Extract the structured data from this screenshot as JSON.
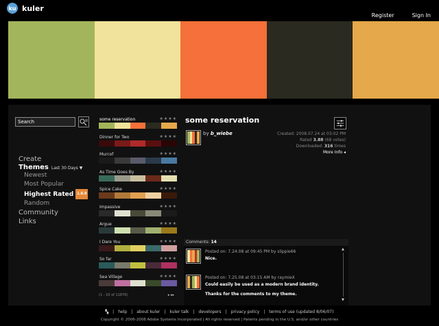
{
  "header": {
    "logo_badge": "ku",
    "logo_text": "kuler",
    "register": "Register",
    "signin": "Sign In"
  },
  "hero_colors": [
    "#a3b55c",
    "#f1e39b",
    "#f5703a",
    "#2a2a20",
    "#e5a84a"
  ],
  "search": {
    "value": "Search"
  },
  "nav": {
    "create": "Create",
    "themes": "Themes",
    "themes_range": "Last 30 Days",
    "newest": "Newest",
    "most_popular": "Most Popular",
    "highest_rated": "Highest Rated",
    "badge": "1.0.9",
    "random": "Random",
    "community": "Community",
    "links": "Links"
  },
  "themes": [
    {
      "name": "some reservation",
      "colors": [
        "#a3b55c",
        "#f1e39b",
        "#f5703a",
        "#2a2a20",
        "#e5a84a"
      ]
    },
    {
      "name": "Dinner for Two",
      "colors": [
        "#3a0a0a",
        "#7a1a1a",
        "#b02a2a",
        "#5a0f0f",
        "#2a0505"
      ]
    },
    {
      "name": "Murcof",
      "colors": [
        "#1a1a1a",
        "#3a3a3a",
        "#5a5a6a",
        "#2a3a4a",
        "#4a7aa0"
      ]
    },
    {
      "name": "As Time Goes By",
      "colors": [
        "#3a6a5a",
        "#9a9a8a",
        "#c8c0a0",
        "#6a2a1a",
        "#e6e0b0"
      ]
    },
    {
      "name": "Spice Cake",
      "colors": [
        "#6a3a1a",
        "#b07a3a",
        "#e0a050",
        "#f0d0a0",
        "#3a1a0a"
      ]
    },
    {
      "name": "Impassive",
      "colors": [
        "#2a2a2a",
        "#e0e0d0",
        "#4a4a3a",
        "#8a8a7a",
        "#1a1a1a"
      ]
    },
    {
      "name": "Argue",
      "colors": [
        "#2a3a3a",
        "#d0e0b0",
        "#5a5a4a",
        "#a0b070",
        "#9a7a1a"
      ]
    },
    {
      "name": "I Dare You",
      "colors": [
        "#3a1a1a",
        "#b0b040",
        "#e0d060",
        "#3a6a6a",
        "#d0a0a0"
      ]
    },
    {
      "name": "So far",
      "colors": [
        "#2a5a5a",
        "#7a7a6a",
        "#c0c040",
        "#4a2a3a",
        "#b03060"
      ]
    },
    {
      "name": "Sea Village",
      "colors": [
        "#4a3a3a",
        "#c070a0",
        "#e0e0d0",
        "#3a4a2a",
        "#6a5aa0"
      ]
    }
  ],
  "stars": "★★★★",
  "pager": {
    "text": "(1 - 10 of 11876)",
    "arrows": "▸   ▸▸"
  },
  "detail": {
    "title": "some reservation",
    "by_prefix": "by",
    "author": "b_wiebe",
    "created": "Created: 2008.07.24 at 03:02 PM",
    "rated_label": "Rated",
    "rated_value": "3.88",
    "votes": "(68 votes)",
    "downloaded_label": "Downloaded:",
    "downloaded_value": "316",
    "downloaded_suffix": "times",
    "more_info": "More Info ◂"
  },
  "comments": {
    "label": "Comments:",
    "count": "14",
    "items": [
      {
        "posted": "Posted on: 7.24.08 at 09:45 PM by slippie66",
        "text": "Nice.",
        "text2": "",
        "colors": [
          "#f1e39b",
          "#f5703a",
          "#e5a84a",
          "#c82a2a",
          "#a3b55c"
        ]
      },
      {
        "posted": "Posted on: 7.25.08 at 03:15 AM by raymieX",
        "text": "Could easily be used as a modern brand identity.",
        "text2": "Thanks for the comments to my theme.",
        "colors": [
          "#e5a84a",
          "#2a2a20",
          "#a3b55c",
          "#f1e39b",
          "#f5703a"
        ]
      }
    ]
  },
  "footer": {
    "links": [
      "help",
      "about kuler",
      "kuler talk",
      "developers",
      "privacy policy",
      "terms of use (updated 8/06/07)"
    ],
    "copyright": "Copyright © 2006-2008 Adobe Systems Incorporated | All rights reserved | Patents pending in the U.S. and/or other countries"
  }
}
